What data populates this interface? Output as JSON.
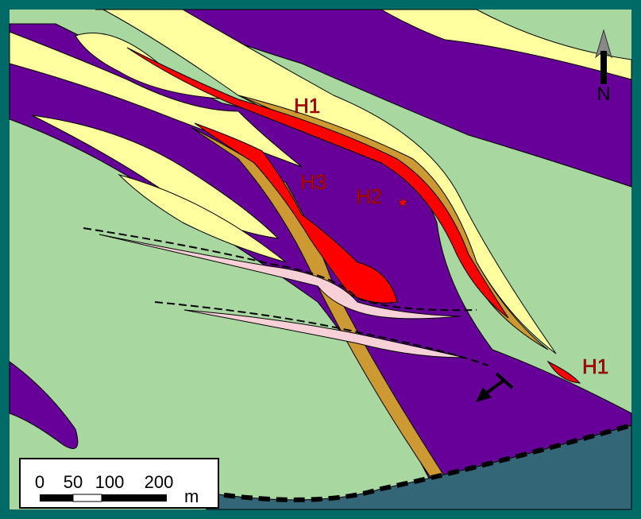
{
  "labels": [
    {
      "text": "H1"
    },
    {
      "text": "H3"
    },
    {
      "text": "H2"
    },
    {
      "text": "H1"
    }
  ],
  "north": "N",
  "scale": {
    "ticks": [
      0,
      50,
      100,
      200
    ],
    "unit": "m"
  }
}
